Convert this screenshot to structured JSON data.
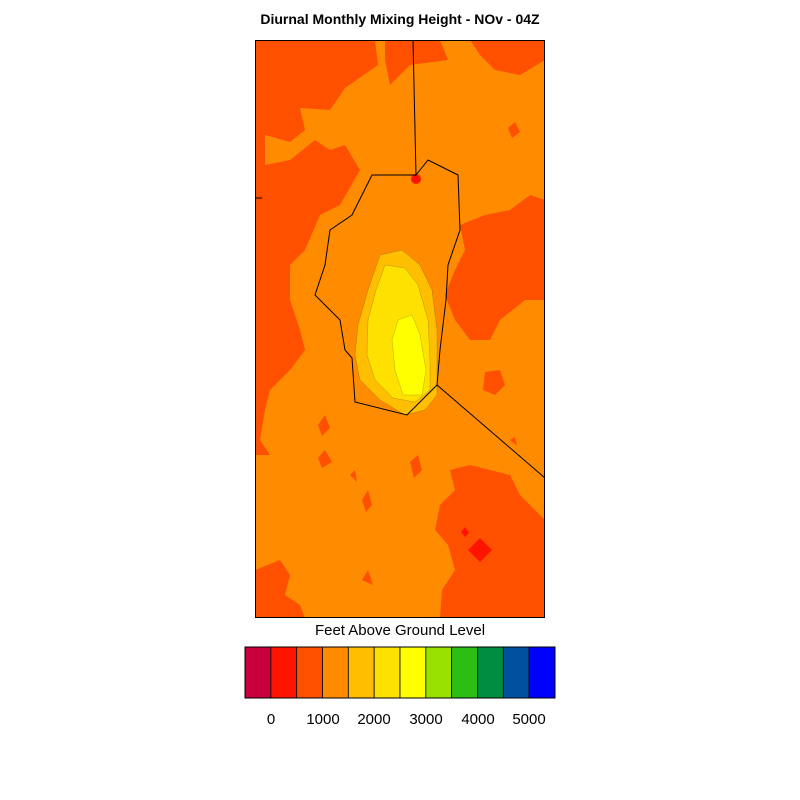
{
  "title": "Diurnal Monthly Mixing Height - NOv - 04Z",
  "legend": {
    "title": "Feet Above Ground Level",
    "colors": [
      "#c8003c",
      "#ff1400",
      "#ff5000",
      "#ff8c00",
      "#ffbe00",
      "#ffe100",
      "#ffff00",
      "#96e100",
      "#2dbe14",
      "#008c41",
      "#0050a0",
      "#0000ff"
    ],
    "tick_labels": [
      "0",
      "1000",
      "2000",
      "3000",
      "4000",
      "5000"
    ]
  },
  "map": {
    "palette": {
      "orange": "#ff8c00",
      "red_orange": "#ff5000",
      "red": "#ff1400",
      "amber": "#ffbe00",
      "gold": "#ffe100",
      "yellow": "#ffff00",
      "boundary": "#000000"
    }
  }
}
